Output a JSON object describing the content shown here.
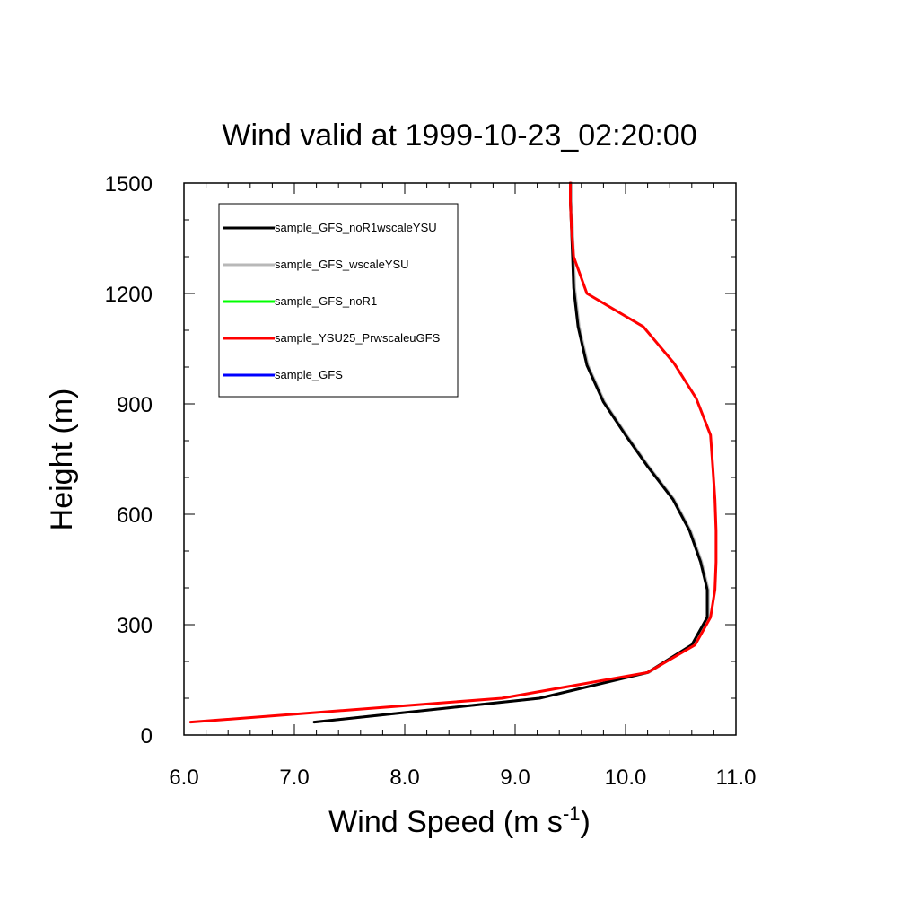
{
  "chart_data": {
    "type": "line",
    "title": "Wind valid at 1999-10-23_02:20:00",
    "xlabel": "Wind Speed (m s",
    "xlabel_superscript": "-1",
    "xlabel_suffix": ")",
    "ylabel": "Height (m)",
    "xlim": [
      6.0,
      11.0
    ],
    "ylim": [
      0,
      1500
    ],
    "x_ticks": [
      "6.0",
      "7.0",
      "8.0",
      "9.0",
      "10.0",
      "11.0"
    ],
    "y_ticks": [
      "0",
      "300",
      "600",
      "900",
      "1200",
      "1500"
    ],
    "grid": false,
    "legend_placement": "top-left",
    "series": [
      {
        "name": "sample_GFS_noR1wscaleYSU",
        "color": "#000000",
        "x": [
          7.18,
          9.22,
          10.2,
          10.6,
          10.74,
          10.74,
          10.68,
          10.58,
          10.43,
          10.2,
          10.0,
          9.8,
          9.65,
          9.57,
          9.53,
          9.52,
          9.51,
          9.5,
          9.5
        ],
        "y": [
          35,
          100,
          170,
          245,
          320,
          395,
          470,
          555,
          640,
          730,
          815,
          905,
          1005,
          1110,
          1215,
          1300,
          1380,
          1450,
          1500
        ]
      },
      {
        "name": "sample_GFS_wscaleYSU",
        "color": "#b8b8b8",
        "x": [
          7.18,
          9.22,
          10.21,
          10.61,
          10.75,
          10.75,
          10.69,
          10.59,
          10.44,
          10.21,
          10.01,
          9.81,
          9.66,
          9.58,
          9.54,
          9.53,
          9.52,
          9.51,
          9.51
        ],
        "y": [
          35,
          100,
          170,
          245,
          320,
          395,
          470,
          555,
          640,
          730,
          815,
          905,
          1005,
          1110,
          1215,
          1300,
          1380,
          1450,
          1500
        ]
      },
      {
        "name": "sample_GFS_noR1",
        "color": "#00ff00",
        "x": [],
        "y": []
      },
      {
        "name": "sample_YSU25_PrwscaleuGFS",
        "color": "#ff0000",
        "x": [
          6.06,
          8.88,
          10.2,
          10.63,
          10.77,
          10.81,
          10.82,
          10.82,
          10.81,
          10.79,
          10.77,
          10.64,
          10.44,
          10.16,
          9.65,
          9.53,
          9.51,
          9.5,
          9.5
        ],
        "y": [
          35,
          100,
          170,
          245,
          320,
          395,
          470,
          555,
          640,
          730,
          815,
          915,
          1010,
          1110,
          1200,
          1300,
          1380,
          1450,
          1500
        ]
      },
      {
        "name": "sample_GFS",
        "color": "#0000ff",
        "x": [],
        "y": []
      }
    ]
  }
}
